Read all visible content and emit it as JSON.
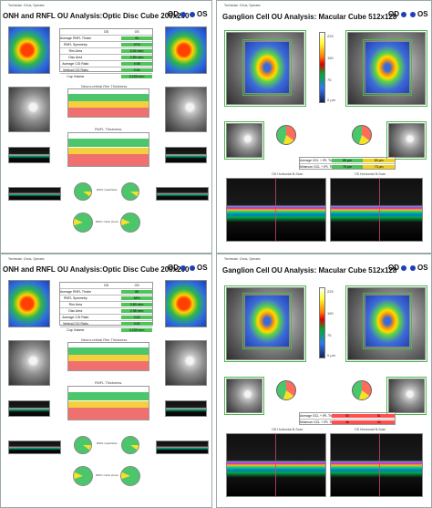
{
  "labels": {
    "A": "A",
    "B": "B",
    "C": "C",
    "D": "D"
  },
  "header": {
    "a": "ONH and RNFL OU Analysis:Optic Disc Cube 200x200",
    "b": "Ganglion Cell OU Analysis: Macular Cube 512x128",
    "c": "ONH and RNFL OU Analysis:Optic Disc Cube 200x200",
    "d": "Ganglion Cell OU Analysis: Macular Cube 512x128",
    "od": "OD",
    "os": "OS"
  },
  "a_table": {
    "headers": [
      "",
      "OD",
      "OS"
    ],
    "rows": [
      [
        "Average RNFL Thickness",
        "",
        "93"
      ],
      [
        "RNFL Symmetry",
        "",
        "97%"
      ],
      [
        "Rim Area",
        "",
        "0.92 mm²"
      ],
      [
        "Disc Area",
        "",
        "2.89 mm²"
      ],
      [
        "Average C/D Ratio",
        "",
        "0.58"
      ],
      [
        "Vertical C/D Ratio",
        "",
        "0.54"
      ],
      [
        "Cup Volume",
        "",
        "0.155 mm³"
      ]
    ]
  },
  "c_table": {
    "headers": [
      "",
      "OD",
      "OS"
    ],
    "rows": [
      [
        "Average RNFL Thickness",
        "",
        "85"
      ],
      [
        "RNFL Symmetry",
        "",
        "88%"
      ],
      [
        "Rim Area",
        "",
        "0.89 mm²"
      ],
      [
        "Disc Area",
        "",
        "2.98 mm²"
      ],
      [
        "Average C/D Ratio",
        "",
        "0.63"
      ],
      [
        "Vertical C/D Ratio",
        "",
        "0.62"
      ],
      [
        "Cup Volume",
        "",
        "0.235 mm³"
      ]
    ]
  },
  "b_table": {
    "rows": [
      [
        "Average GCL + IPL Thickness",
        "85 µm",
        "80 µm"
      ],
      [
        "Minimum GCL + IPL Thickness",
        "79 µm",
        "73 µm"
      ]
    ]
  },
  "d_table": {
    "rows": [
      [
        "Average GCL + IPL Thickness",
        "53",
        "51"
      ],
      [
        "Minimum GCL + IPL Thickness",
        "46",
        "43"
      ]
    ]
  },
  "texts": {
    "neuroRetinal": "Neuro-retinal Rim Thickness",
    "rnflThickness": "RNFL Thickness",
    "rnflQuadrants": "RNFL Quadrants",
    "clockHours": "RNFL Clock Hours",
    "odThickness": "OD Thickness Map",
    "osThickness": "OS Thickness Map",
    "odDeviation": "OD Deviation Map",
    "osDeviation": "OS Deviation Map",
    "odSectors": "OD Sectors",
    "osSectors": "OS Sectors",
    "odHorizontal": "OD Horizontal B-Scan",
    "osHorizontal": "OS Horizontal B-Scan",
    "scale225": "225",
    "scale150": "150",
    "scale75": "75",
    "scale0": "0 µm"
  }
}
